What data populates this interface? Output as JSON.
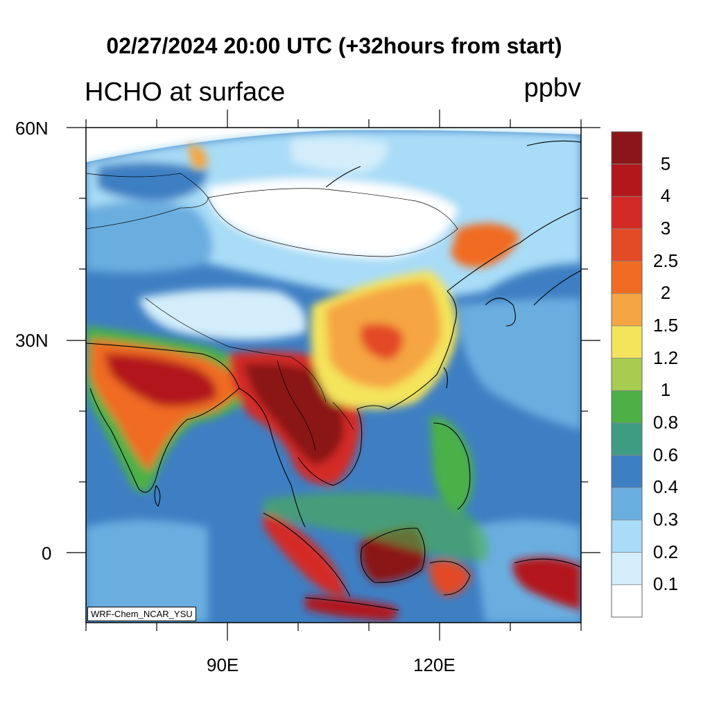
{
  "title": "02/27/2024 20:00 UTC (+32hours from start)",
  "subtitle_left": "HCHO at surface",
  "subtitle_right": "ppbv",
  "credit": "WRF-Chem_NCAR_YSU",
  "axes": {
    "y_ticks": [
      {
        "label": "60N",
        "lat": 60
      },
      {
        "label": "30N",
        "lat": 30
      },
      {
        "label": "0",
        "lat": 0
      }
    ],
    "x_ticks": [
      {
        "label": "90E",
        "lon": 90
      },
      {
        "label": "120E",
        "lon": 120
      }
    ]
  },
  "colorbar": {
    "labels": [
      "5",
      "4",
      "3",
      "2.5",
      "2",
      "1.5",
      "1.2",
      "1",
      "0.8",
      "0.6",
      "0.4",
      "0.3",
      "0.2",
      "0.1"
    ],
    "colors": [
      "#8b1518",
      "#b2181b",
      "#d42a27",
      "#e34a26",
      "#f06c23",
      "#f5a542",
      "#f4e45b",
      "#a8cc50",
      "#4cb047",
      "#3f9c84",
      "#3e7fc3",
      "#6aaee0",
      "#a8dcf7",
      "#d3edfb",
      "#ffffff"
    ]
  }
}
